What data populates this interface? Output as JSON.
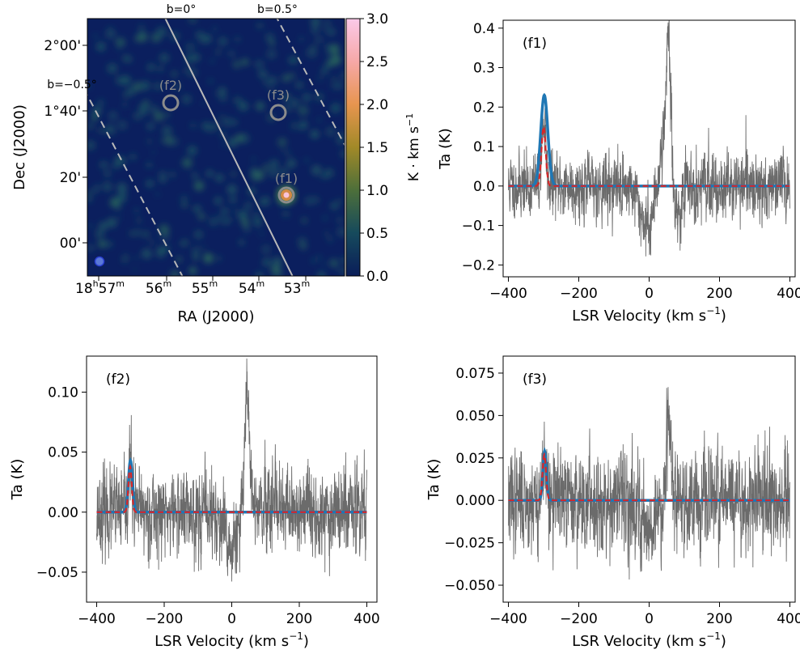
{
  "chart_data": [
    {
      "type": "heatmap",
      "id": "map",
      "xlabel": "RA (J2000)",
      "ylabel": "Dec (J2000)",
      "xticks": [
        {
          "sup": "h",
          "sup2": "m",
          "pre": "18",
          "mid": "57",
          "text": "18h57m"
        },
        {
          "text": "56",
          "sup": "m"
        },
        {
          "text": "55",
          "sup": "m"
        },
        {
          "text": "54",
          "sup": "m"
        },
        {
          "text": "53",
          "sup": "m"
        }
      ],
      "yticks": [
        "2°00'",
        "1°40'",
        "20'",
        "00'"
      ],
      "colorbar": {
        "label": "K · km s",
        "label_exp": "−1",
        "range": [
          0,
          3.0
        ],
        "ticks": [
          "0.0",
          "0.5",
          "1.0",
          "1.5",
          "2.0",
          "2.5",
          "3.0"
        ],
        "colormap": "batlow-like",
        "colors": [
          "#0a1d59",
          "#164a5c",
          "#4d6f3a",
          "#a18928",
          "#e7954f",
          "#f6a8a7",
          "#fbc9e9"
        ]
      },
      "lines": [
        {
          "label": "b=0°",
          "style": "solid"
        },
        {
          "label": "b=0.5°",
          "style": "dashed"
        },
        {
          "label": "b=−0.5°",
          "style": "dashed"
        }
      ],
      "regions": [
        {
          "label": "(f1)",
          "peak": 1.9
        },
        {
          "label": "(f2)",
          "peak": 0.4
        },
        {
          "label": "(f3)",
          "peak": 0.35
        }
      ],
      "background_color": "#0b1f5e",
      "beam_color": "#5b79d8"
    },
    {
      "type": "line",
      "id": "f1",
      "panel_label": "(f1)",
      "xlabel": "LSR Velocity (km s",
      "xlabel_exp": "−1",
      "xlabel_close": ")",
      "ylabel": "Ta (K)",
      "xlim": [
        -415,
        415
      ],
      "ylim": [
        -0.23,
        0.42
      ],
      "xticks": [
        -400,
        -200,
        0,
        200,
        400
      ],
      "yticks": [
        -0.2,
        -0.1,
        0.0,
        0.1,
        0.2,
        0.3,
        0.4
      ],
      "ytick_labels": [
        "−0.2",
        "−0.1",
        "0.0",
        "0.1",
        "0.2",
        "0.3",
        "0.4"
      ],
      "spectrum": {
        "noise_rms": 0.042,
        "features": [
          {
            "center": -300,
            "amp": 0.16,
            "sigma": 6
          },
          {
            "center": 55,
            "amp": 0.34,
            "sigma": 6
          },
          {
            "center": 40,
            "amp": 0.12,
            "sigma": 12
          },
          {
            "center": -5,
            "amp": -0.1,
            "sigma": 20
          },
          {
            "center": 85,
            "amp": -0.07,
            "sigma": 10
          }
        ]
      },
      "series": [
        {
          "name": "",
          "kind": "fit",
          "color": "#1f77b4",
          "center": -298,
          "amp": 0.23,
          "sigma": 10,
          "range": [
            -400,
            400
          ]
        },
        {
          "name": "",
          "kind": "model",
          "color": "#d62728",
          "center": -300,
          "amp": 0.15,
          "sigma": 6,
          "range": [
            -400,
            400
          ]
        }
      ]
    },
    {
      "type": "line",
      "id": "f2",
      "panel_label": "(f2)",
      "xlabel": "LSR Velocity (km s",
      "xlabel_exp": "−1",
      "xlabel_close": ")",
      "ylabel": "Ta (K)",
      "xlim": [
        -430,
        430
      ],
      "ylim": [
        -0.075,
        0.13
      ],
      "xticks": [
        -400,
        -200,
        0,
        200,
        400
      ],
      "yticks": [
        -0.05,
        0.0,
        0.05,
        0.1
      ],
      "ytick_labels": [
        "−0.05",
        "0.00",
        "0.05",
        "0.10"
      ],
      "spectrum": {
        "noise_rms": 0.018,
        "features": [
          {
            "center": -300,
            "amp": 0.04,
            "sigma": 5
          },
          {
            "center": 45,
            "amp": 0.11,
            "sigma": 8
          },
          {
            "center": 0,
            "amp": -0.03,
            "sigma": 25
          }
        ]
      },
      "series": [
        {
          "name": "",
          "kind": "fit",
          "color": "#1f77b4",
          "center": -300,
          "amp": 0.043,
          "sigma": 6,
          "range": [
            -400,
            400
          ]
        },
        {
          "name": "",
          "kind": "model",
          "color": "#d62728",
          "center": -301,
          "amp": 0.038,
          "sigma": 5,
          "range": [
            -400,
            400
          ]
        }
      ]
    },
    {
      "type": "line",
      "id": "f3",
      "panel_label": "(f3)",
      "xlabel": "LSR Velocity (km s",
      "xlabel_exp": "−1",
      "xlabel_close": ")",
      "ylabel": "Ta (K)",
      "xlim": [
        -415,
        415
      ],
      "ylim": [
        -0.06,
        0.085
      ],
      "xticks": [
        -400,
        -200,
        0,
        200,
        400
      ],
      "yticks": [
        -0.05,
        -0.025,
        0.0,
        0.025,
        0.05,
        0.075
      ],
      "ytick_labels": [
        "−0.050",
        "−0.025",
        "0.000",
        "0.025",
        "0.050",
        "0.075"
      ],
      "spectrum": {
        "noise_rms": 0.015,
        "features": [
          {
            "center": -298,
            "amp": 0.028,
            "sigma": 5
          },
          {
            "center": 55,
            "amp": 0.06,
            "sigma": 6
          },
          {
            "center": 0,
            "amp": -0.015,
            "sigma": 20
          }
        ]
      },
      "series": [
        {
          "name": "",
          "kind": "fit",
          "color": "#1f77b4",
          "center": -297,
          "amp": 0.029,
          "sigma": 5,
          "range": [
            -400,
            400
          ]
        },
        {
          "name": "",
          "kind": "model",
          "color": "#d62728",
          "center": -298,
          "amp": 0.027,
          "sigma": 5,
          "range": [
            -400,
            400
          ]
        }
      ]
    }
  ]
}
